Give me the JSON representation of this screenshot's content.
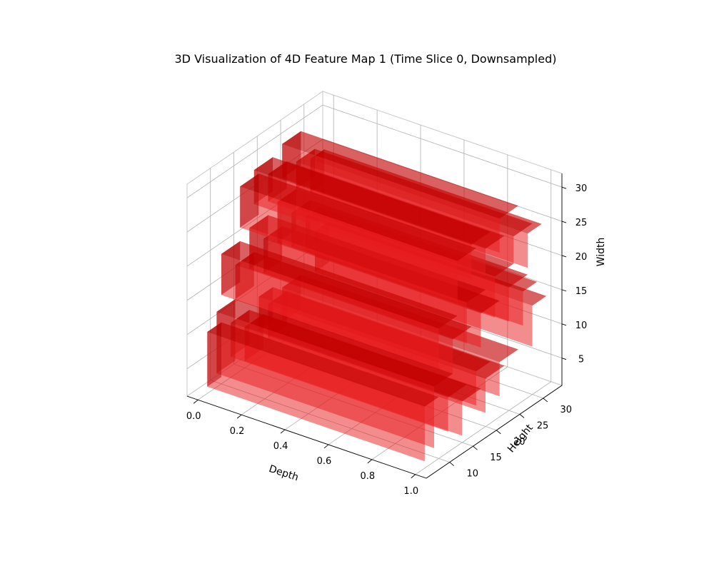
{
  "chart_data": {
    "type": "voxel-3d",
    "title": "3D Visualization of 4D Feature Map 1 (Time Slice 0, Downsampled)",
    "xlabel": "Depth",
    "ylabel": "Height",
    "zlabel": "Width",
    "xlim": [
      -0.05,
      1.05
    ],
    "ylim": [
      5,
      34
    ],
    "zlim": [
      1,
      32
    ],
    "xticks": [
      "0.0",
      "0.2",
      "0.4",
      "0.6",
      "0.8",
      "1.0"
    ],
    "xtick_values": [
      0.0,
      0.2,
      0.4,
      0.6,
      0.8,
      1.0
    ],
    "yticks": [
      "10",
      "15",
      "20",
      "25",
      "30"
    ],
    "ytick_values": [
      10,
      15,
      20,
      25,
      30
    ],
    "zticks": [
      "5",
      "10",
      "15",
      "20",
      "25",
      "30"
    ],
    "ztick_values": [
      5,
      10,
      15,
      20,
      25,
      30
    ],
    "grid": true,
    "voxel_color": "#e8191c",
    "pane_color": "#f2f2f2",
    "voxels": [
      {
        "x0": 0,
        "x1": 1,
        "y0": 7,
        "y1": 10,
        "z0": 2,
        "z1": 10
      },
      {
        "x0": 0,
        "x1": 1,
        "y0": 9,
        "y1": 13,
        "z0": 3,
        "z1": 12
      },
      {
        "x0": 0,
        "x1": 1,
        "y0": 12,
        "y1": 16,
        "z0": 4,
        "z1": 9
      },
      {
        "x0": 0,
        "x1": 1,
        "y0": 15,
        "y1": 19,
        "z0": 2,
        "z1": 7
      },
      {
        "x0": 0,
        "x1": 1,
        "y0": 18,
        "y1": 21,
        "z0": 5,
        "z1": 10
      },
      {
        "x0": 0,
        "x1": 1,
        "y0": 20,
        "y1": 24,
        "z0": 3,
        "z1": 8
      },
      {
        "x0": 0,
        "x1": 1,
        "y0": 23,
        "y1": 27,
        "z0": 4,
        "z1": 9
      },
      {
        "x0": 0,
        "x1": 1,
        "y0": 10,
        "y1": 14,
        "z0": 14,
        "z1": 20
      },
      {
        "x0": 0,
        "x1": 1,
        "y0": 13,
        "y1": 17,
        "z0": 12,
        "z1": 17
      },
      {
        "x0": 0,
        "x1": 1,
        "y0": 16,
        "y1": 20,
        "z0": 15,
        "z1": 21
      },
      {
        "x0": 0,
        "x1": 1,
        "y0": 19,
        "y1": 23,
        "z0": 13,
        "z1": 18
      },
      {
        "x0": 0,
        "x1": 1,
        "y0": 22,
        "y1": 26,
        "z0": 16,
        "z1": 22
      },
      {
        "x0": 0,
        "x1": 1,
        "y0": 25,
        "y1": 29,
        "z0": 14,
        "z1": 19
      },
      {
        "x0": 0,
        "x1": 1,
        "y0": 28,
        "y1": 31,
        "z0": 12,
        "z1": 17
      },
      {
        "x0": 0,
        "x1": 1,
        "y0": 14,
        "y1": 18,
        "z0": 22,
        "z1": 28
      },
      {
        "x0": 0,
        "x1": 1,
        "y0": 17,
        "y1": 21,
        "z0": 24,
        "z1": 29
      },
      {
        "x0": 0,
        "x1": 1,
        "y0": 20,
        "y1": 24,
        "z0": 23,
        "z1": 27
      },
      {
        "x0": 0,
        "x1": 1,
        "y0": 23,
        "y1": 27,
        "z0": 25,
        "z1": 30
      },
      {
        "x0": 0,
        "x1": 1,
        "y0": 26,
        "y1": 30,
        "z0": 22,
        "z1": 26
      },
      {
        "x0": 0,
        "x1": 1,
        "y0": 29,
        "y1": 32,
        "z0": 20,
        "z1": 25
      },
      {
        "x0": 0,
        "x1": 1,
        "y0": 30,
        "y1": 33,
        "z0": 8,
        "z1": 14
      }
    ]
  }
}
